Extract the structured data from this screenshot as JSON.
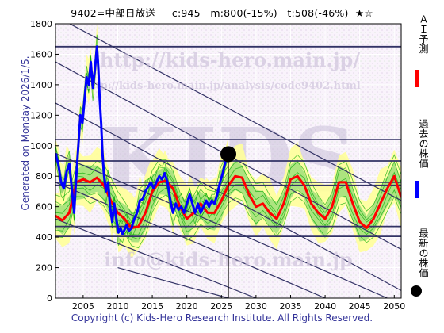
{
  "header": {
    "title": "9402=中部日放送     c:945   m:800(-15%)   t:508(-46%)  ★☆",
    "generated": "Generated on Monday 2026/1/5.",
    "copyright": "Copyright (c) Kids-Hero Research Institute. All Rights Reserved."
  },
  "watermarks": {
    "top": "http://kids-hero.main.jp/",
    "middle": "http://kids-hero.main.jp/analysis/code9402.html",
    "bottom": "info@kids-hero.main.jp",
    "logo": "KIDS"
  },
  "legend": {
    "ai_forecast": "ＡＩ予測",
    "past_price": "過去の株価",
    "latest_price": "最新の株価"
  },
  "colors": {
    "ai_forecast": "#ff0000",
    "past_price": "#0000ff",
    "latest_price": "#000000",
    "trend_lines": "#333366",
    "band_fill": "#ffff99",
    "band_green": "#00aa00",
    "label_text": "#333399"
  },
  "chart_data": {
    "type": "line",
    "xlim": [
      2001,
      2051
    ],
    "ylim": [
      0,
      1800
    ],
    "x_ticks": [
      "2005",
      "2010",
      "2015",
      "2020",
      "2025",
      "2030",
      "2035",
      "2040",
      "2045",
      "2050"
    ],
    "y_ticks": [
      "0",
      "200",
      "400",
      "600",
      "800",
      "1000",
      "1200",
      "1400",
      "1600",
      "1800"
    ],
    "grid": true,
    "latest_point": {
      "x": 2026.0,
      "y": 945
    },
    "latest_marker_x": 2026.0,
    "horizontal_levels": [
      1650,
      1040,
      900,
      760,
      740,
      470,
      405
    ],
    "trend_lines": [
      {
        "x1": 2001,
        "y1": 1850,
        "x2": 2051,
        "y2": 640
      },
      {
        "x1": 2001,
        "y1": 1550,
        "x2": 2051,
        "y2": 320
      },
      {
        "x1": 2001,
        "y1": 1280,
        "x2": 2051,
        "y2": 50
      },
      {
        "x1": 2001,
        "y1": 950,
        "x2": 2049,
        "y2": 0
      },
      {
        "x1": 2001,
        "y1": 760,
        "x2": 2040,
        "y2": 0
      },
      {
        "x1": 2001,
        "y1": 520,
        "x2": 2030,
        "y2": 0
      },
      {
        "x1": 2010,
        "y1": 200,
        "x2": 2026,
        "y2": 0
      }
    ],
    "series": [
      {
        "name": "過去の株価",
        "x": [
          2001.0,
          2001.4,
          2001.8,
          2002.2,
          2002.6,
          2003.0,
          2003.4,
          2003.7,
          2004.0,
          2004.3,
          2004.6,
          2004.9,
          2005.2,
          2005.5,
          2005.8,
          2006.1,
          2006.4,
          2006.7,
          2007.0,
          2007.2,
          2007.4,
          2007.6,
          2007.8,
          2008.0,
          2008.3,
          2008.6,
          2008.9,
          2009.2,
          2009.5,
          2009.8,
          2010.1,
          2010.4,
          2010.7,
          2011.0,
          2011.3,
          2011.6,
          2012.0,
          2012.4,
          2012.8,
          2013.2,
          2013.6,
          2014.0,
          2014.4,
          2014.8,
          2015.2,
          2015.6,
          2016.0,
          2016.4,
          2016.8,
          2017.2,
          2017.6,
          2018.0,
          2018.4,
          2018.8,
          2019.2,
          2019.6,
          2020.0,
          2020.4,
          2020.8,
          2021.2,
          2021.6,
          2022.0,
          2022.4,
          2022.8,
          2023.2,
          2023.6,
          2024.0,
          2024.4,
          2024.8,
          2025.2,
          2025.6,
          2026.0
        ],
        "y": [
          950,
          880,
          760,
          720,
          830,
          880,
          700,
          560,
          800,
          1000,
          1200,
          1150,
          1300,
          1450,
          1400,
          1550,
          1380,
          1500,
          1650,
          1500,
          1300,
          1150,
          950,
          820,
          700,
          760,
          600,
          500,
          620,
          520,
          430,
          460,
          420,
          450,
          480,
          440,
          460,
          520,
          560,
          640,
          650,
          700,
          730,
          760,
          720,
          760,
          800,
          780,
          820,
          760,
          640,
          560,
          620,
          580,
          600,
          560,
          620,
          680,
          620,
          560,
          620,
          560,
          600,
          640,
          600,
          640,
          620,
          680,
          760,
          820,
          900,
          945
        ]
      },
      {
        "name": "ＡＩ予測",
        "x": [
          2001.0,
          2002.0,
          2003.0,
          2004.0,
          2005.0,
          2006.0,
          2007.0,
          2008.0,
          2009.0,
          2010.0,
          2011.0,
          2012.0,
          2013.0,
          2014.0,
          2015.0,
          2016.0,
          2017.0,
          2018.0,
          2019.0,
          2020.0,
          2021.0,
          2022.0,
          2023.0,
          2024.0,
          2025.0,
          2026.0,
          2027.0,
          2028.0,
          2029.0,
          2030.0,
          2031.0,
          2032.0,
          2033.0,
          2034.0,
          2035.0,
          2036.0,
          2037.0,
          2038.0,
          2039.0,
          2040.0,
          2041.0,
          2042.0,
          2043.0,
          2044.0,
          2045.0,
          2046.0,
          2047.0,
          2048.0,
          2049.0,
          2050.0,
          2051.0
        ],
        "y": [
          540,
          510,
          560,
          760,
          780,
          760,
          790,
          740,
          640,
          560,
          520,
          460,
          470,
          560,
          700,
          760,
          770,
          720,
          600,
          520,
          560,
          620,
          560,
          560,
          640,
          740,
          800,
          790,
          680,
          600,
          620,
          560,
          520,
          620,
          780,
          800,
          740,
          620,
          560,
          520,
          600,
          760,
          760,
          620,
          500,
          460,
          520,
          620,
          720,
          800,
          660
        ]
      }
    ]
  }
}
